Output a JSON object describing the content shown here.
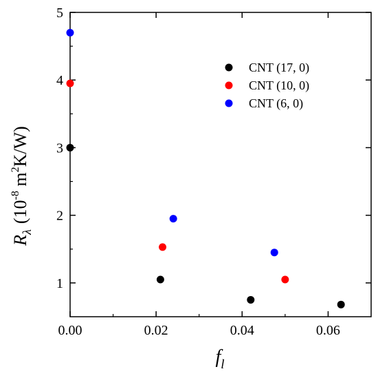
{
  "chart_data": {
    "type": "scatter",
    "title": "",
    "xlabel": {
      "base": "f",
      "subscript": "l"
    },
    "ylabel": {
      "symbol": "R",
      "subscript": "λ",
      "open": "(10",
      "exp1": "-8",
      "mid": " m",
      "exp2": "2",
      "close": "K/W)"
    },
    "xlim": [
      0,
      0.07
    ],
    "ylim": [
      0.5,
      5
    ],
    "xticks": [
      0,
      0.02,
      0.04,
      0.06
    ],
    "xtick_labels": [
      "0.00",
      "0.02",
      "0.04",
      "0.06"
    ],
    "yticks": [
      1,
      2,
      3,
      4,
      5
    ],
    "ytick_labels": [
      "1",
      "2",
      "3",
      "4",
      "5"
    ],
    "grid": false,
    "legend_position": "top-right",
    "series": [
      {
        "name": "CNT (17, 0)",
        "color": "#000000",
        "x": [
          0,
          0.021,
          0.042,
          0.063
        ],
        "y": [
          3.0,
          1.05,
          0.75,
          0.68
        ]
      },
      {
        "name": "CNT (10, 0)",
        "color": "#ff0000",
        "x": [
          0,
          0.0215,
          0.05
        ],
        "y": [
          3.95,
          1.53,
          1.05
        ]
      },
      {
        "name": "CNT (6, 0)",
        "color": "#0000ff",
        "x": [
          0,
          0.024,
          0.0475
        ],
        "y": [
          4.7,
          1.95,
          1.45
        ]
      }
    ]
  }
}
